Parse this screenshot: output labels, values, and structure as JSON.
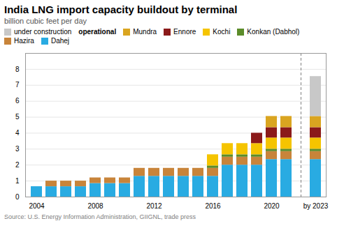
{
  "chart_data": {
    "type": "bar",
    "stacked": true,
    "title": "India LNG import capacity buildout by terminal",
    "subtitle": "billion cubic feet per day",
    "source": "Source: U.S. Energy Information Administration, GIIGNL, trade press",
    "annotations": [
      "operational"
    ],
    "categories": [
      "2004",
      null,
      null,
      null,
      "2008",
      null,
      null,
      null,
      "2012",
      null,
      null,
      null,
      "2016",
      null,
      null,
      null,
      "2020",
      null,
      "by 2023"
    ],
    "series": [
      {
        "name": "Dahej",
        "color": "#29ABE2",
        "values": [
          0.65,
          0.65,
          0.65,
          0.65,
          0.85,
          0.85,
          0.85,
          1.3,
          1.3,
          1.3,
          1.3,
          1.3,
          1.3,
          2.0,
          2.0,
          2.0,
          2.35,
          2.35,
          2.35
        ]
      },
      {
        "name": "Hazira",
        "color": "#C8843A",
        "values": [
          0.0,
          0.35,
          0.35,
          0.35,
          0.35,
          0.35,
          0.35,
          0.5,
          0.5,
          0.5,
          0.5,
          0.5,
          0.5,
          0.5,
          0.5,
          0.5,
          0.5,
          0.5,
          0.5
        ]
      },
      {
        "name": "Konkan (Dabhol)",
        "color": "#5B8C2A",
        "values": [
          0.0,
          0.0,
          0.0,
          0.0,
          0.0,
          0.0,
          0.0,
          0.0,
          0.0,
          0.0,
          0.0,
          0.0,
          0.15,
          0.15,
          0.15,
          0.15,
          0.15,
          0.15,
          0.15
        ]
      },
      {
        "name": "Kochi",
        "color": "#F5C400",
        "values": [
          0.0,
          0.0,
          0.0,
          0.0,
          0.0,
          0.0,
          0.0,
          0.0,
          0.0,
          0.0,
          0.0,
          0.0,
          0.7,
          0.7,
          0.7,
          0.7,
          0.7,
          0.7,
          0.7
        ]
      },
      {
        "name": "Ennore",
        "color": "#8B1A1A",
        "values": [
          0.0,
          0.0,
          0.0,
          0.0,
          0.0,
          0.0,
          0.0,
          0.0,
          0.0,
          0.0,
          0.0,
          0.0,
          0.0,
          0.0,
          0.0,
          0.65,
          0.65,
          0.65,
          0.65
        ]
      },
      {
        "name": "Mundra",
        "color": "#DAA520",
        "values": [
          0.0,
          0.0,
          0.0,
          0.0,
          0.0,
          0.0,
          0.0,
          0.0,
          0.0,
          0.0,
          0.0,
          0.0,
          0.0,
          0.0,
          0.0,
          0.0,
          0.7,
          0.7,
          0.7
        ]
      },
      {
        "name": "under construction",
        "color": "#C8C8C8",
        "values": [
          null,
          null,
          null,
          null,
          null,
          null,
          null,
          null,
          null,
          null,
          null,
          null,
          null,
          null,
          null,
          null,
          null,
          null,
          2.5
        ]
      }
    ],
    "ylim": [
      0,
      9
    ],
    "yticks": [
      0,
      1,
      2,
      3,
      4,
      5,
      6,
      7,
      8
    ],
    "grid": true,
    "legend": "top"
  }
}
